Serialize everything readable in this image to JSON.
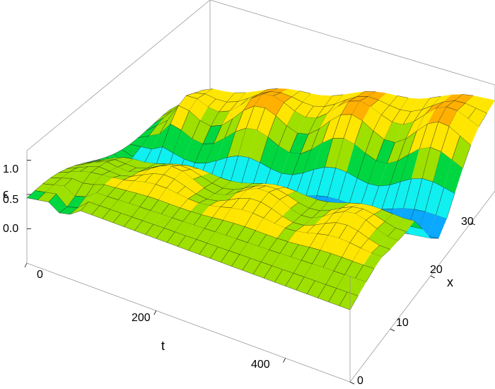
{
  "chart_data": {
    "type": "surface3d",
    "title": "",
    "axes": {
      "t": {
        "label": "t",
        "range": [
          0,
          500
        ],
        "ticks": [
          0,
          200,
          400
        ]
      },
      "x": {
        "label": "x",
        "range": [
          0,
          36
        ],
        "ticks": [
          0,
          10,
          20,
          30
        ]
      },
      "z": {
        "label": "ϵ",
        "range": [
          -0.5,
          1.2
        ],
        "ticks": [
          0.0,
          0.5,
          1.0
        ]
      }
    },
    "colormap": [
      "#0a2cff",
      "#0aa8ff",
      "#10f0f0",
      "#00d640",
      "#9ee000",
      "#ffe600",
      "#ffb000",
      "#ff2000"
    ],
    "bounding_box": true,
    "mesh_lines": true,
    "profile": {
      "description_points_x": [
        0,
        4,
        8,
        12,
        16,
        18,
        20,
        22,
        24,
        26,
        28,
        30,
        32,
        34,
        36
      ],
      "long_time_values": [
        0.55,
        0.65,
        0.75,
        0.75,
        0.65,
        0.35,
        0.05,
        -0.1,
        0.05,
        0.3,
        0.55,
        0.75,
        0.85,
        0.85,
        0.85
      ]
    }
  }
}
